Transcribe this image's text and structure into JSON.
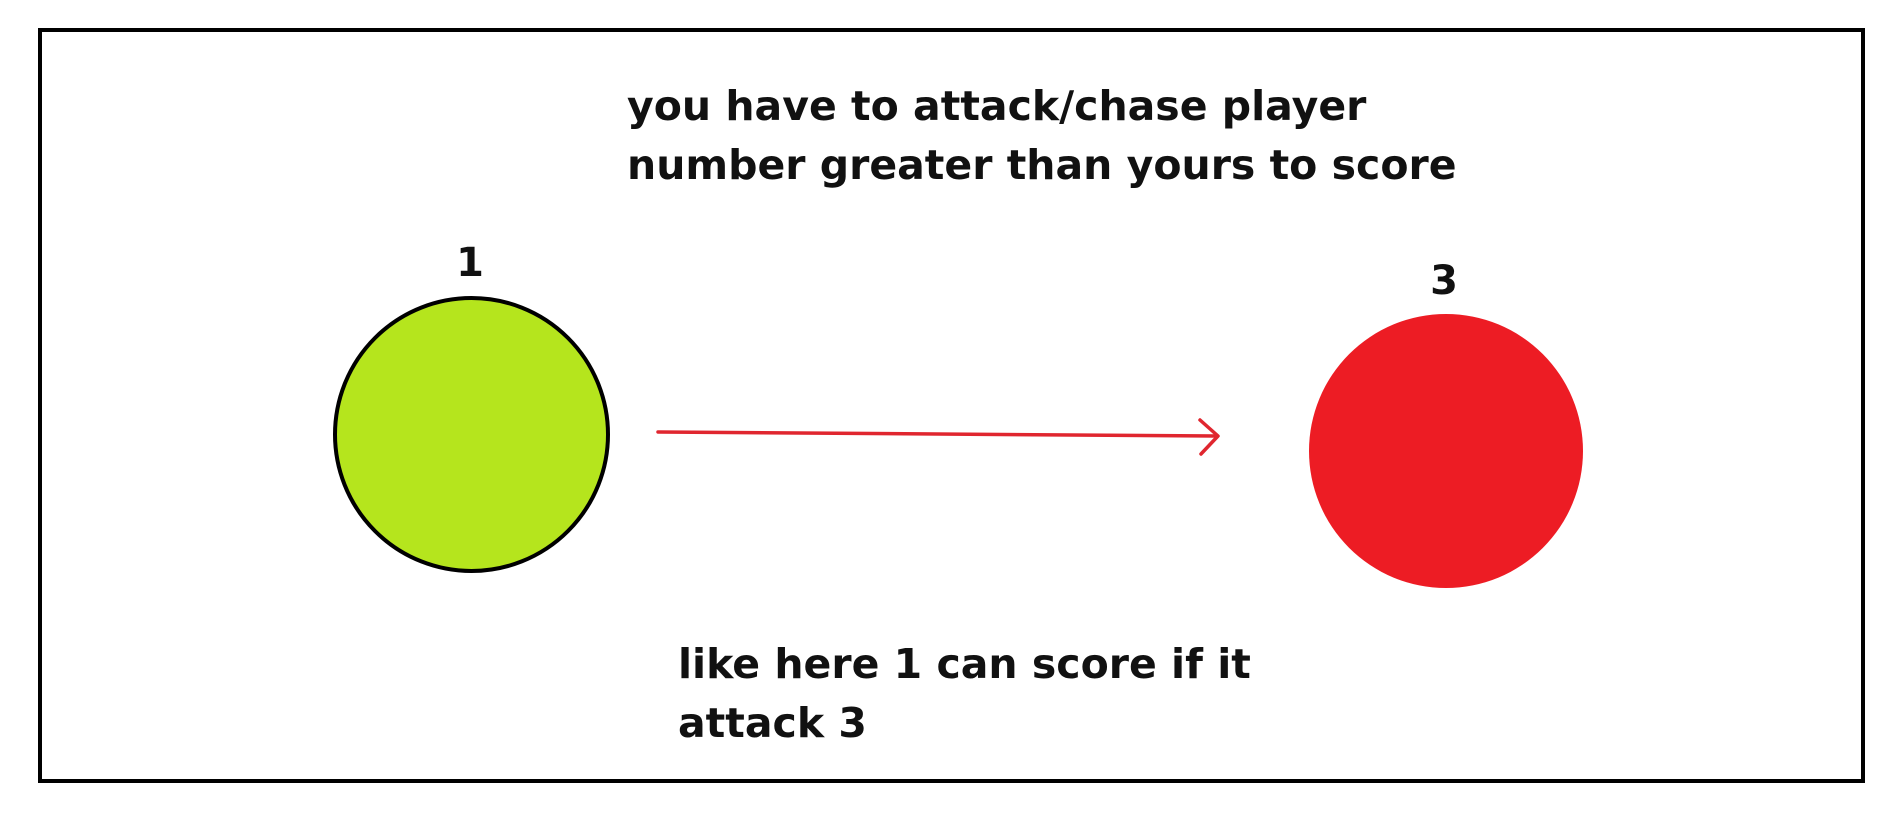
{
  "diagram": {
    "instruction_lines": [
      "you have to attack/chase player",
      "number greater than yours to score"
    ],
    "example_lines": [
      "like here 1 can score if it",
      "attack 3"
    ],
    "players": [
      {
        "number": "1",
        "color": "#b5e51d",
        "outline": "#000000"
      },
      {
        "number": "3",
        "color": "#ed1c24"
      }
    ],
    "arrow": {
      "from": "1",
      "to": "3",
      "color": "#e0262f"
    }
  }
}
